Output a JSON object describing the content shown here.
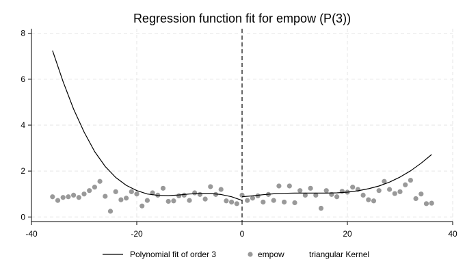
{
  "chart_data": {
    "type": "scatter",
    "title": "Regression function fit for empow (P(3))",
    "xlabel": "",
    "ylabel": "",
    "xlim": [
      -40,
      40
    ],
    "ylim": [
      -0.2,
      8.2
    ],
    "x_ticks": [
      -40,
      -20,
      0,
      20,
      40
    ],
    "y_ticks": [
      0,
      2,
      4,
      6,
      8
    ],
    "x_tick_labels": [
      "-40",
      "-20",
      "0",
      "20",
      "40"
    ],
    "y_tick_labels": [
      "0",
      "2",
      "4",
      "6",
      "8"
    ],
    "grid": true,
    "cutoff_x": 0,
    "legend_position": "bottom",
    "legend": [
      {
        "label": "Polynomial fit of order 3",
        "kind": "line"
      },
      {
        "label": "empow",
        "kind": "marker"
      },
      {
        "label": "triangular Kernel",
        "kind": "none"
      }
    ],
    "series": [
      {
        "name": "Polynomial fit of order 3",
        "kind": "line",
        "color": "#000000",
        "segments": [
          {
            "x": [
              -36,
              -34,
              -32,
              -30,
              -28,
              -26,
              -24,
              -22,
              -20,
              -18,
              -16,
              -14,
              -12,
              -10,
              -8,
              -6,
              -4,
              -2,
              0
            ],
            "y": [
              7.25,
              5.9,
              4.7,
              3.7,
              2.85,
              2.2,
              1.72,
              1.38,
              1.15,
              1.0,
              0.94,
              0.93,
              0.96,
              1.0,
              1.02,
              1.02,
              0.98,
              0.88,
              0.72
            ]
          },
          {
            "x": [
              0,
              2,
              4,
              6,
              8,
              10,
              12,
              14,
              16,
              18,
              20,
              22,
              24,
              26,
              28,
              30,
              32,
              34,
              36
            ],
            "y": [
              0.88,
              0.92,
              0.97,
              1.01,
              1.03,
              1.04,
              1.04,
              1.04,
              1.04,
              1.05,
              1.08,
              1.14,
              1.23,
              1.35,
              1.52,
              1.74,
              2.01,
              2.34,
              2.72
            ]
          }
        ]
      },
      {
        "name": "empow",
        "kind": "scatter",
        "color": "#999999",
        "x": [
          -36,
          -35,
          -34,
          -33,
          -32,
          -31,
          -30,
          -29,
          -28,
          -27,
          -26,
          -25,
          -24,
          -23,
          -22,
          -21,
          -20,
          -19,
          -18,
          -17,
          -16,
          -15,
          -14,
          -13,
          -12,
          -11,
          -10,
          -9,
          -8,
          -7,
          -6,
          -5,
          -4,
          -3,
          -2,
          -1,
          0,
          1,
          2,
          3,
          4,
          5,
          6,
          7,
          8,
          9,
          10,
          11,
          12,
          13,
          14,
          15,
          16,
          17,
          18,
          19,
          20,
          21,
          22,
          23,
          24,
          25,
          26,
          27,
          28,
          29,
          30,
          31,
          32,
          33,
          34,
          35,
          36
        ],
        "y": [
          0.88,
          0.72,
          0.85,
          0.88,
          0.95,
          0.85,
          1.0,
          1.15,
          1.3,
          1.55,
          0.9,
          0.25,
          1.1,
          0.75,
          0.82,
          1.1,
          1.0,
          0.48,
          0.72,
          1.05,
          0.95,
          1.25,
          0.68,
          0.7,
          0.92,
          0.95,
          0.72,
          1.05,
          0.98,
          0.78,
          1.32,
          0.98,
          1.2,
          0.7,
          0.65,
          0.58,
          0.95,
          0.72,
          0.82,
          0.92,
          0.65,
          0.98,
          0.72,
          1.35,
          0.65,
          1.35,
          0.62,
          1.15,
          0.95,
          1.25,
          0.95,
          0.38,
          1.15,
          0.98,
          0.88,
          1.12,
          1.08,
          1.3,
          1.2,
          0.95,
          0.75,
          0.7,
          1.15,
          1.55,
          1.2,
          1.02,
          1.1,
          1.4,
          1.6,
          0.8,
          1.0,
          0.58,
          0.6
        ]
      }
    ]
  }
}
